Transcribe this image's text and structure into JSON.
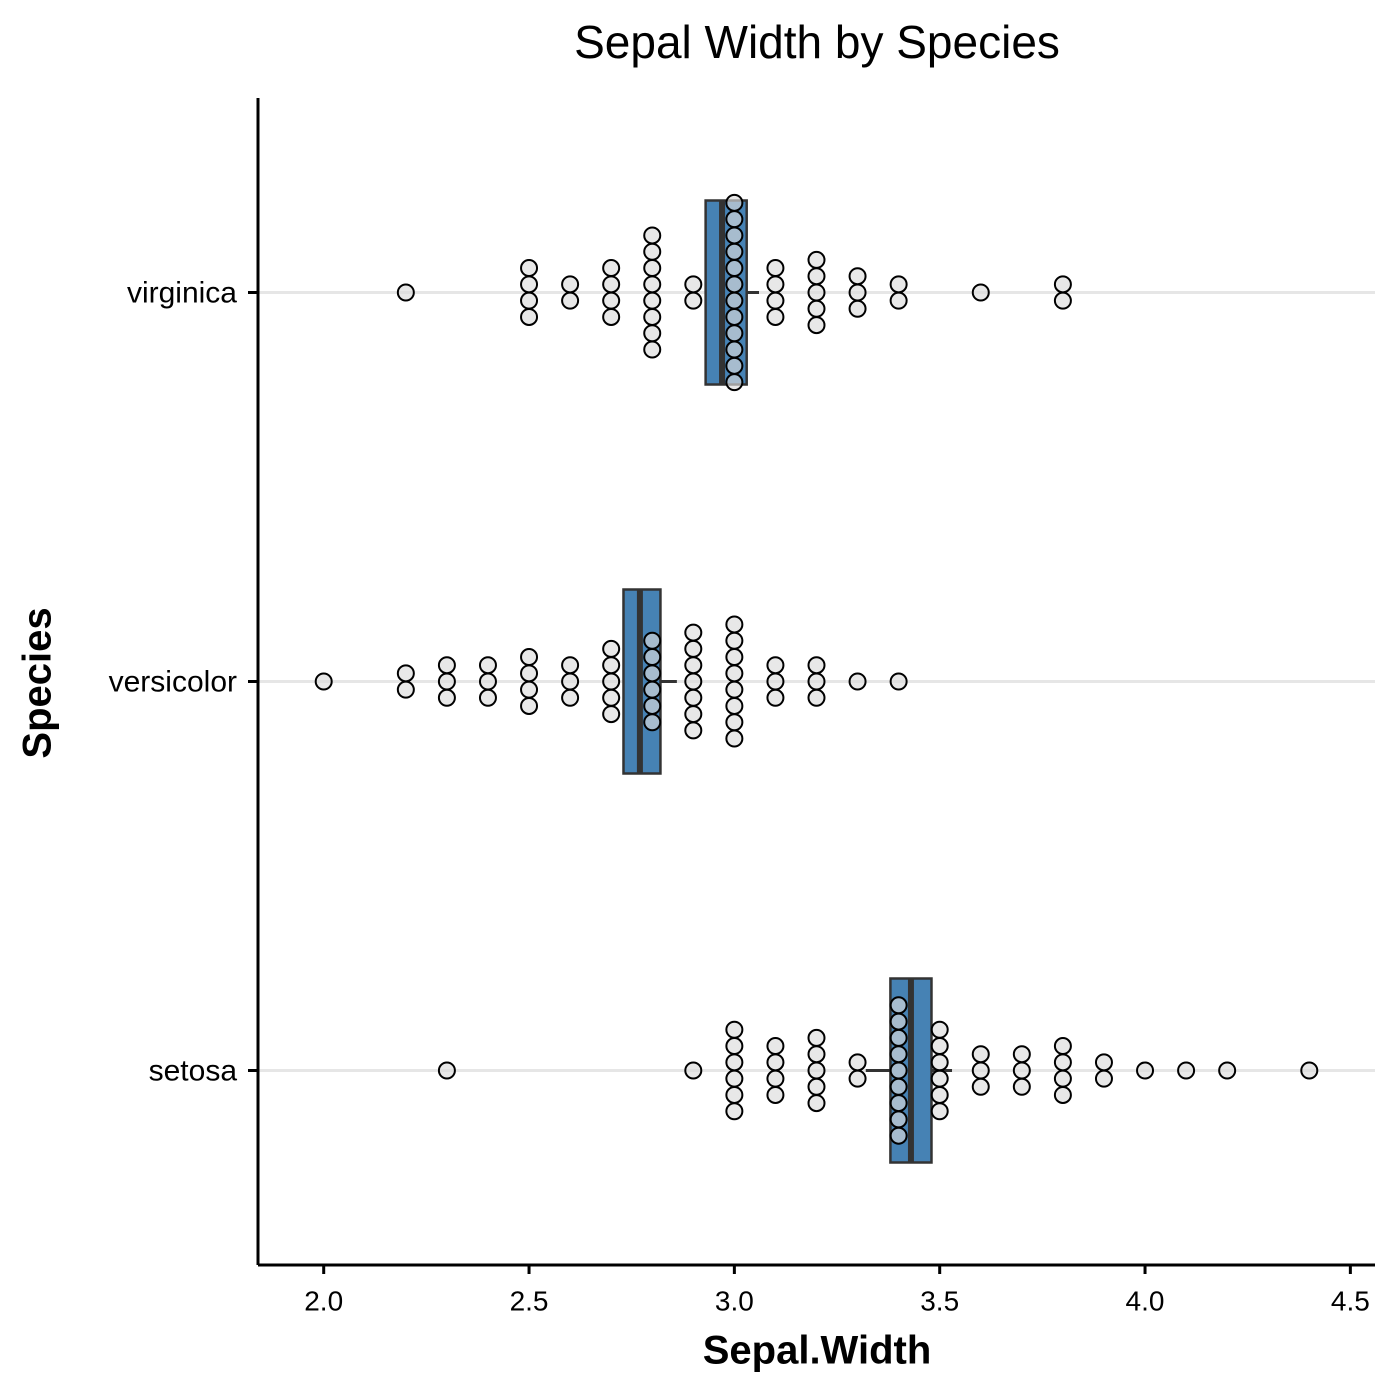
{
  "chart_data": {
    "type": "boxplot-dots",
    "title": "Sepal Width by Species",
    "x_label": "Sepal.Width",
    "y_label": "Species",
    "orientation": "horizontal",
    "categories": [
      "setosa",
      "versicolor",
      "virginica"
    ],
    "box_color": "#4682b4",
    "dot_color": "#dcdcdc",
    "xlim": [
      1.84,
      4.56
    ],
    "xticks": [
      {
        "value": 2.0,
        "label": "2.0"
      },
      {
        "value": 2.5,
        "label": "2.5"
      },
      {
        "value": 3.0,
        "label": "3.0"
      },
      {
        "value": 3.5,
        "label": "3.5"
      },
      {
        "value": 4.0,
        "label": "4.0"
      },
      {
        "value": 4.5,
        "label": "4.5"
      }
    ],
    "grid": true,
    "boxes": [
      {
        "whisker_low": 3.32,
        "q1": 3.38,
        "median": 3.43,
        "q3": 3.48,
        "whisker_high": 3.53
      },
      {
        "q1": 2.73,
        "median": 2.77,
        "q3": 2.82,
        "whisker_high": 2.86
      },
      {
        "q1": 2.93,
        "median": 2.97,
        "q3": 3.03,
        "whisker_high": 3.06
      }
    ],
    "dots": [
      [
        2.3,
        2.9,
        3.0,
        3.0,
        3.0,
        3.0,
        3.0,
        3.0,
        3.1,
        3.1,
        3.1,
        3.1,
        3.2,
        3.2,
        3.2,
        3.2,
        3.2,
        3.3,
        3.3,
        3.4,
        3.4,
        3.4,
        3.4,
        3.4,
        3.4,
        3.4,
        3.4,
        3.4,
        3.5,
        3.5,
        3.5,
        3.5,
        3.5,
        3.5,
        3.6,
        3.6,
        3.6,
        3.7,
        3.7,
        3.7,
        3.8,
        3.8,
        3.8,
        3.8,
        3.9,
        3.9,
        4.0,
        4.1,
        4.2,
        4.4
      ],
      [
        2.0,
        2.2,
        2.2,
        2.3,
        2.3,
        2.3,
        2.4,
        2.4,
        2.4,
        2.5,
        2.5,
        2.5,
        2.5,
        2.6,
        2.6,
        2.6,
        2.7,
        2.7,
        2.7,
        2.7,
        2.7,
        2.8,
        2.8,
        2.8,
        2.8,
        2.8,
        2.8,
        2.9,
        2.9,
        2.9,
        2.9,
        2.9,
        2.9,
        2.9,
        3.0,
        3.0,
        3.0,
        3.0,
        3.0,
        3.0,
        3.0,
        3.0,
        3.1,
        3.1,
        3.1,
        3.2,
        3.2,
        3.2,
        3.3,
        3.4
      ],
      [
        2.2,
        2.5,
        2.5,
        2.5,
        2.5,
        2.6,
        2.6,
        2.7,
        2.7,
        2.7,
        2.7,
        2.8,
        2.8,
        2.8,
        2.8,
        2.8,
        2.8,
        2.8,
        2.8,
        2.9,
        2.9,
        3.0,
        3.0,
        3.0,
        3.0,
        3.0,
        3.0,
        3.0,
        3.0,
        3.0,
        3.0,
        3.0,
        3.0,
        3.1,
        3.1,
        3.1,
        3.1,
        3.2,
        3.2,
        3.2,
        3.2,
        3.2,
        3.3,
        3.3,
        3.3,
        3.4,
        3.4,
        3.6,
        3.8,
        3.8
      ]
    ]
  }
}
